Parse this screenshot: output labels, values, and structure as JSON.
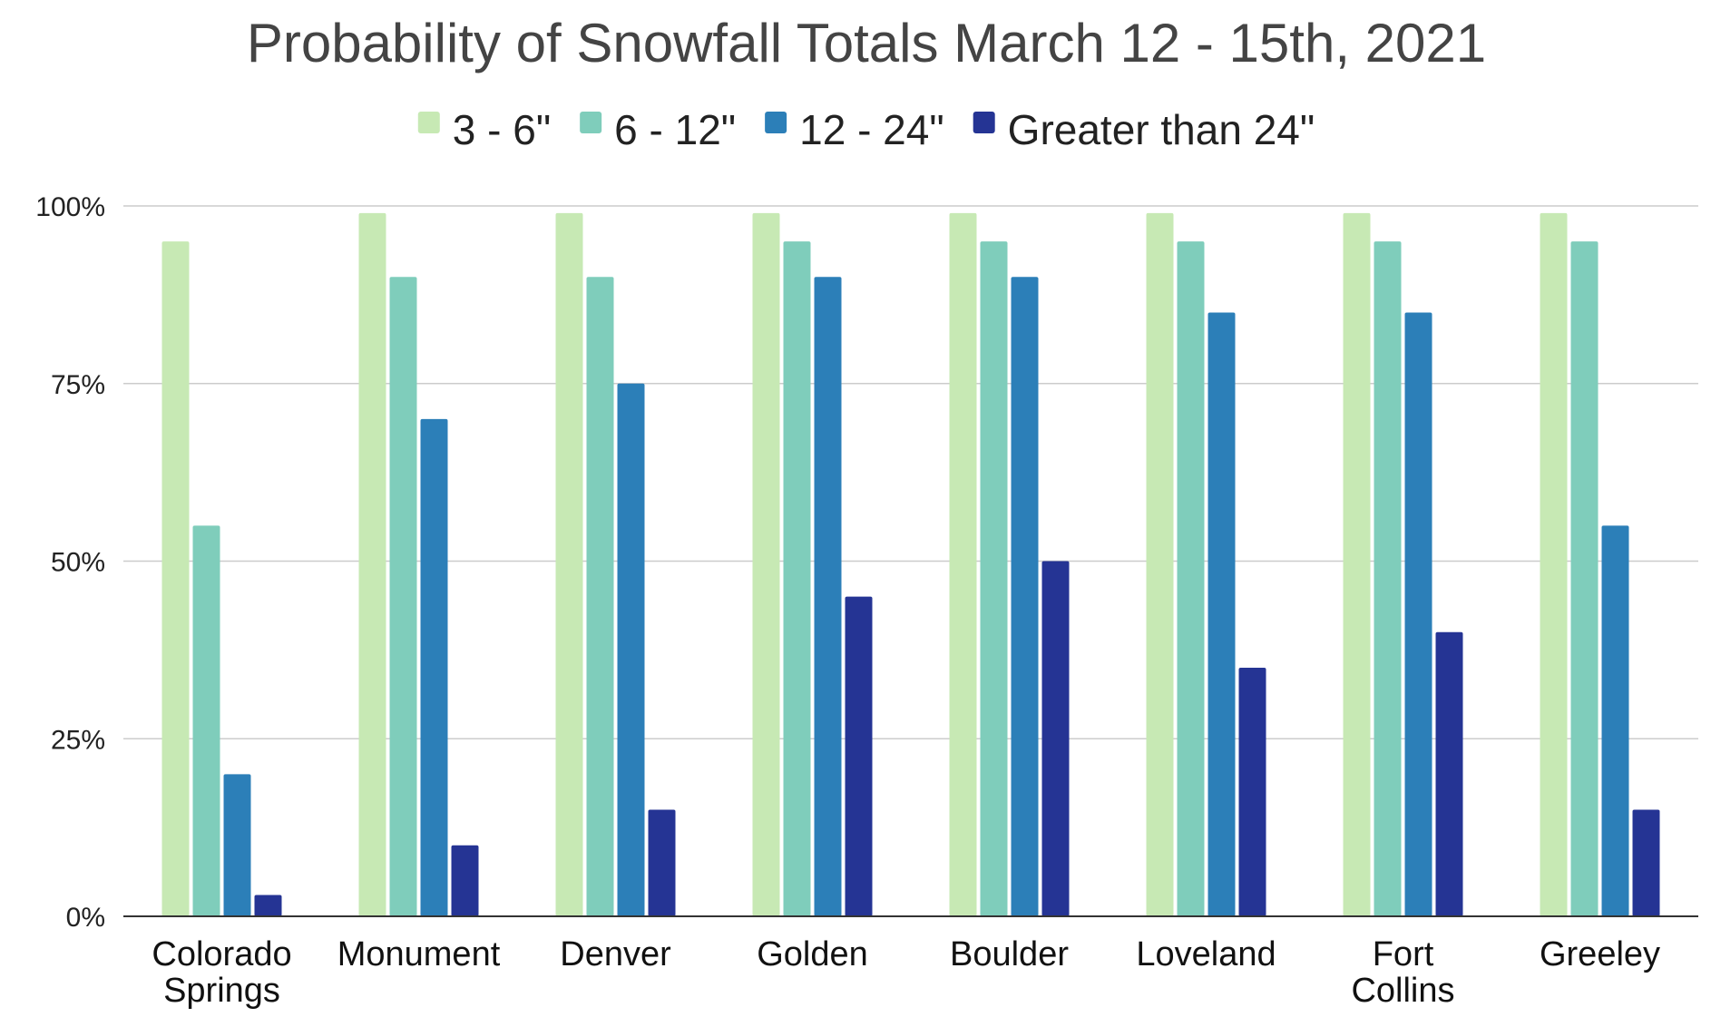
{
  "chart_data": {
    "type": "bar",
    "title": "Probability of Snowfall Totals March 12 - 15th, 2021",
    "xlabel": "",
    "ylabel": "",
    "ylim": [
      0,
      100
    ],
    "y_ticks": [
      0,
      25,
      50,
      75,
      100
    ],
    "y_tick_labels": [
      "0%",
      "25%",
      "50%",
      "75%",
      "100%"
    ],
    "grid": true,
    "legend_position": "top",
    "categories": [
      "Colorado Springs",
      "Monument",
      "Denver",
      "Golden",
      "Boulder",
      "Loveland",
      "Fort Collins",
      "Greeley"
    ],
    "series": [
      {
        "name": "3 - 6\"",
        "color": "#c7e9b4",
        "values": [
          95,
          99,
          99,
          99,
          99,
          99,
          99,
          99
        ]
      },
      {
        "name": "6 - 12\"",
        "color": "#7fcdbb",
        "values": [
          55,
          90,
          90,
          95,
          95,
          95,
          95,
          95
        ]
      },
      {
        "name": "12 - 24\"",
        "color": "#2c7fb8",
        "values": [
          20,
          70,
          75,
          90,
          90,
          85,
          85,
          55
        ]
      },
      {
        "name": "Greater than 24\"",
        "color": "#253494",
        "values": [
          3,
          10,
          15,
          45,
          50,
          35,
          40,
          15
        ]
      }
    ]
  }
}
